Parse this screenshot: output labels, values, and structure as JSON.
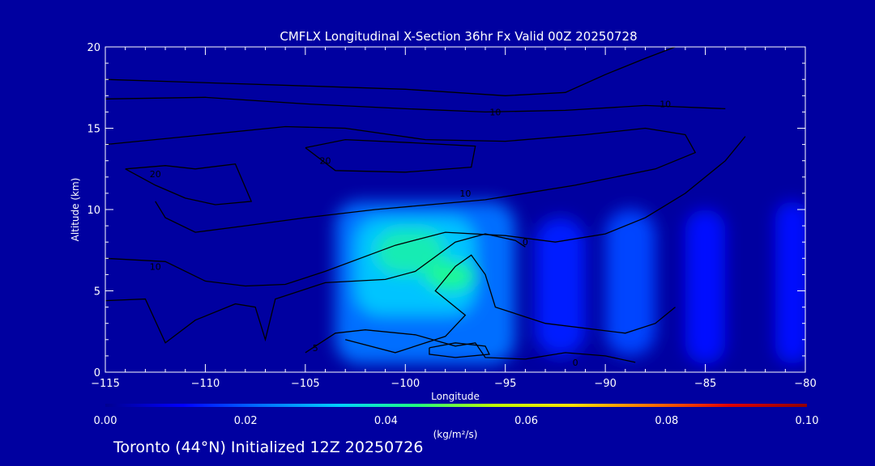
{
  "chart_data": {
    "type": "heatmap",
    "title": "CMFLX Longitudinal X-Section 36hr  Fx Valid 00Z 20250728",
    "xlabel": "Longitude",
    "ylabel": "Altitude (km)",
    "xlim": [
      -115,
      -80
    ],
    "ylim": [
      0,
      20
    ],
    "x_ticks": [
      -115,
      -110,
      -105,
      -100,
      -95,
      -90,
      -85,
      -80
    ],
    "y_ticks": [
      0,
      5,
      10,
      15,
      20
    ],
    "colorbar": {
      "label": "(kg/m²/s)",
      "range": [
        0,
        0.1
      ],
      "ticks": [
        "0.00",
        "0.02",
        "0.04",
        "0.06",
        "0.08",
        "0.10"
      ],
      "colors": [
        "#000090",
        "#0000ff",
        "#0070ff",
        "#00d0ff",
        "#20ff80",
        "#c0ff00",
        "#ffe000",
        "#ff7000",
        "#e00000",
        "#900000"
      ]
    },
    "background_color": "#0000a0",
    "grid": false,
    "blobs": [
      {
        "x": [
          -103.5,
          -94.5
        ],
        "y": [
          0.5,
          10.5
        ],
        "level": 0.022
      },
      {
        "x": [
          -102.5,
          -96.5
        ],
        "y": [
          3.5,
          9.5
        ],
        "level": 0.032
      },
      {
        "x": [
          -101.5,
          -98
        ],
        "y": [
          6,
          8.8
        ],
        "level": 0.04
      },
      {
        "x": [
          -99,
          -96.5
        ],
        "y": [
          5,
          6.8
        ],
        "level": 0.043
      },
      {
        "x": [
          -93.5,
          -91
        ],
        "y": [
          1,
          9.5
        ],
        "level": 0.014
      },
      {
        "x": [
          -90,
          -87.5
        ],
        "y": [
          1,
          10
        ],
        "level": 0.018
      },
      {
        "x": [
          -86,
          -84
        ],
        "y": [
          0.5,
          10
        ],
        "level": 0.012
      },
      {
        "x": [
          -81.5,
          -79.8
        ],
        "y": [
          0.5,
          10.5
        ],
        "level": 0.012
      }
    ],
    "contours": [
      {
        "label": "10",
        "label_at": [
          -95.5,
          16
        ],
        "points": [
          [
            -115,
            18
          ],
          [
            -105,
            17.6
          ],
          [
            -100,
            17.4
          ],
          [
            -95,
            17
          ],
          [
            -92,
            17.2
          ],
          [
            -90,
            18.3
          ],
          [
            -88,
            19.3
          ],
          [
            -86.5,
            20
          ]
        ]
      },
      {
        "label": "10",
        "label_at": [
          -87,
          16.5
        ],
        "points": [
          [
            -115,
            16.8
          ],
          [
            -110,
            16.9
          ],
          [
            -105,
            16.5
          ],
          [
            -100,
            16.2
          ],
          [
            -96,
            16
          ],
          [
            -92,
            16.1
          ],
          [
            -88,
            16.4
          ],
          [
            -84,
            16.2
          ]
        ]
      },
      {
        "label": "10",
        "label_at": [
          -97,
          11
        ],
        "points": [
          [
            -115,
            14
          ],
          [
            -110,
            14.6
          ],
          [
            -106,
            15.1
          ],
          [
            -103,
            15
          ],
          [
            -99,
            14.3
          ],
          [
            -95,
            14.2
          ],
          [
            -91,
            14.6
          ],
          [
            -88,
            15
          ],
          [
            -86,
            14.6
          ],
          [
            -85.5,
            13.5
          ],
          [
            -87.5,
            12.5
          ],
          [
            -91.5,
            11.5
          ],
          [
            -96,
            10.6
          ],
          [
            -101.5,
            10
          ],
          [
            -105,
            9.5
          ],
          [
            -108,
            9
          ],
          [
            -110.5,
            8.6
          ],
          [
            -112,
            9.5
          ],
          [
            -112.5,
            10.5
          ]
        ]
      },
      {
        "label": "20",
        "label_at": [
          -112.5,
          12.2
        ],
        "points": [
          [
            -114,
            12.5
          ],
          [
            -112,
            12.7
          ],
          [
            -110.5,
            12.5
          ],
          [
            -108.5,
            12.8
          ],
          [
            -107.7,
            10.5
          ],
          [
            -109.5,
            10.3
          ],
          [
            -111,
            10.7
          ],
          [
            -112.5,
            11.5
          ],
          [
            -114,
            12.5
          ]
        ]
      },
      {
        "label": "20",
        "label_at": [
          -104,
          13
        ],
        "points": [
          [
            -105,
            13.8
          ],
          [
            -103,
            14.3
          ],
          [
            -99.5,
            14.1
          ],
          [
            -96.5,
            13.9
          ],
          [
            -96.7,
            12.6
          ],
          [
            -100,
            12.3
          ],
          [
            -103.5,
            12.4
          ],
          [
            -105,
            13.8
          ]
        ]
      },
      {
        "label": "10",
        "label_at": [
          -112.5,
          6.5
        ],
        "points": [
          [
            -115,
            7
          ],
          [
            -112,
            6.8
          ],
          [
            -110,
            5.6
          ],
          [
            -108,
            5.3
          ],
          [
            -106,
            5.4
          ],
          [
            -104,
            6.2
          ],
          [
            -100.5,
            7.8
          ],
          [
            -98,
            8.6
          ],
          [
            -95,
            8.4
          ],
          [
            -92.5,
            8
          ],
          [
            -90,
            8.5
          ],
          [
            -88,
            9.5
          ],
          [
            -86,
            11
          ],
          [
            -84,
            13
          ],
          [
            -83,
            14.5
          ]
        ]
      },
      {
        "label": "0",
        "label_at": [
          -94,
          8
        ],
        "points": [
          [
            -115,
            4.4
          ],
          [
            -113,
            4.5
          ],
          [
            -112,
            1.8
          ],
          [
            -110.5,
            3.2
          ],
          [
            -108.5,
            4.2
          ],
          [
            -107.5,
            4
          ],
          [
            -107,
            2
          ],
          [
            -106.5,
            4.5
          ],
          [
            -104,
            5.5
          ],
          [
            -101,
            5.7
          ],
          [
            -99.5,
            6.2
          ],
          [
            -97.5,
            8
          ],
          [
            -96,
            8.5
          ],
          [
            -94.5,
            8.1
          ],
          [
            -94,
            7.7
          ]
        ]
      },
      {
        "label": "0",
        "label_at": [
          -91.5,
          0.6
        ],
        "points": [
          [
            -103,
            2
          ],
          [
            -100.5,
            1.2
          ],
          [
            -98,
            2.2
          ],
          [
            -97,
            3.5
          ],
          [
            -98.5,
            5
          ],
          [
            -97.5,
            6.5
          ],
          [
            -96.7,
            7.2
          ],
          [
            -96,
            6
          ],
          [
            -95.5,
            4
          ],
          [
            -93,
            3
          ],
          [
            -89,
            2.4
          ],
          [
            -87.5,
            3
          ],
          [
            -86.5,
            4
          ]
        ]
      },
      {
        "label": "5",
        "label_at": [
          -104.5,
          1.5
        ],
        "points": [
          [
            -105,
            1.2
          ],
          [
            -103.5,
            2.4
          ],
          [
            -102,
            2.6
          ],
          [
            -99.5,
            2.3
          ],
          [
            -97.5,
            1.6
          ],
          [
            -96.5,
            1.8
          ],
          [
            -96,
            0.9
          ],
          [
            -94,
            0.8
          ],
          [
            -92,
            1.2
          ],
          [
            -90,
            1
          ],
          [
            -88.5,
            0.6
          ]
        ]
      },
      {
        "label": "",
        "label_at": [
          -98,
          1
        ],
        "points": [
          [
            -98.8,
            1.5
          ],
          [
            -97.5,
            1.8
          ],
          [
            -96,
            1.6
          ],
          [
            -95.8,
            1.1
          ],
          [
            -97.5,
            0.9
          ],
          [
            -98.8,
            1.1
          ],
          [
            -98.8,
            1.5
          ]
        ]
      }
    ]
  },
  "footer": {
    "text": "Toronto (44°N) Initialized 12Z 20250726"
  }
}
